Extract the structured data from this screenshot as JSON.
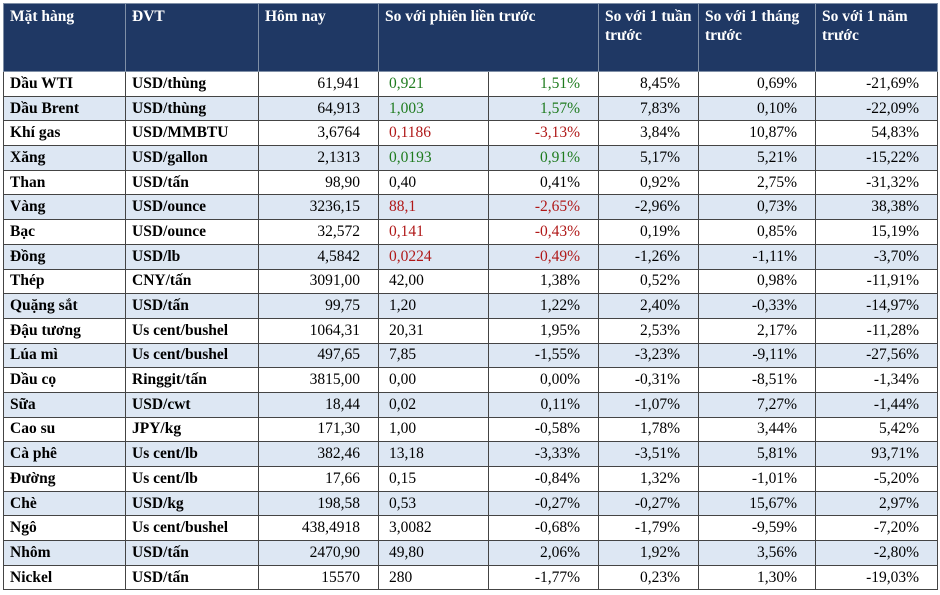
{
  "table": {
    "headers": [
      "Mặt hàng",
      "ĐVT",
      "Hôm nay",
      "So với phiên liền trước",
      "So với 1 tuần trước",
      "So với 1 tháng trước",
      "So với 1 năm trước"
    ],
    "up_color": "#1e7b1e",
    "down_color": "#b01818",
    "rows": [
      {
        "cells": [
          "Dầu WTI",
          "USD/thùng",
          "61,941",
          "0,921",
          "1,51%",
          "8,45%",
          "0,69%",
          "-21,69%"
        ],
        "change": "up"
      },
      {
        "cells": [
          "Dầu Brent",
          "USD/thùng",
          "64,913",
          "1,003",
          "1,57%",
          "7,83%",
          "0,10%",
          "-22,09%"
        ],
        "change": "up"
      },
      {
        "cells": [
          "Khí gas",
          "USD/MMBTU",
          "3,6764",
          "0,1186",
          "-3,13%",
          "3,84%",
          "10,87%",
          "54,83%"
        ],
        "change": "down"
      },
      {
        "cells": [
          "Xăng",
          "USD/gallon",
          "2,1313",
          "0,0193",
          "0,91%",
          "5,17%",
          "5,21%",
          "-15,22%"
        ],
        "change": "up"
      },
      {
        "cells": [
          "Than",
          "USD/tấn",
          "98,90",
          "0,40",
          "0,41%",
          "0,92%",
          "2,75%",
          "-31,32%"
        ]
      },
      {
        "cells": [
          "Vàng",
          "USD/ounce",
          "3236,15",
          "88,1",
          "-2,65%",
          "-2,96%",
          "0,73%",
          "38,38%"
        ],
        "change": "down"
      },
      {
        "cells": [
          "Bạc",
          "USD/ounce",
          "32,572",
          "0,141",
          "-0,43%",
          "0,19%",
          "0,85%",
          "15,19%"
        ],
        "change": "down"
      },
      {
        "cells": [
          "Đồng",
          "USD/lb",
          "4,5842",
          "0,0224",
          "-0,49%",
          "-1,26%",
          "-1,11%",
          "-3,70%"
        ],
        "change": "down"
      },
      {
        "cells": [
          "Thép",
          "CNY/tấn",
          "3091,00",
          "42,00",
          "1,38%",
          "0,52%",
          "0,98%",
          "-11,91%"
        ]
      },
      {
        "cells": [
          "Quặng sắt",
          "USD/tấn",
          "99,75",
          "1,20",
          "1,22%",
          "2,40%",
          "-0,33%",
          "-14,97%"
        ]
      },
      {
        "cells": [
          "Đậu tương",
          "Us cent/bushel",
          "1064,31",
          "20,31",
          "1,95%",
          "2,53%",
          "2,17%",
          "-11,28%"
        ]
      },
      {
        "cells": [
          "Lúa mì",
          "Us cent/bushel",
          "497,65",
          "7,85",
          "-1,55%",
          "-3,23%",
          "-9,11%",
          "-27,56%"
        ]
      },
      {
        "cells": [
          "Dầu cọ",
          "Ringgit/tấn",
          "3815,00",
          "0,00",
          "0,00%",
          "-0,31%",
          "-8,51%",
          "-1,34%"
        ]
      },
      {
        "cells": [
          "Sữa",
          "USD/cwt",
          "18,44",
          "0,02",
          "0,11%",
          "-1,07%",
          "7,27%",
          "-1,44%"
        ]
      },
      {
        "cells": [
          "Cao su",
          "JPY/kg",
          "171,30",
          "1,00",
          "-0,58%",
          "1,78%",
          "3,44%",
          "5,42%"
        ]
      },
      {
        "cells": [
          "Cà phê",
          "Us cent/lb",
          "382,46",
          "13,18",
          "-3,33%",
          "-3,51%",
          "5,81%",
          "93,71%"
        ]
      },
      {
        "cells": [
          "Đường",
          "Us cent/lb",
          "17,66",
          "0,15",
          "-0,84%",
          "1,32%",
          "-1,01%",
          "-5,20%"
        ]
      },
      {
        "cells": [
          "Chè",
          "USD/kg",
          "198,58",
          "0,53",
          "-0,27%",
          "-0,27%",
          "15,67%",
          "2,97%"
        ]
      },
      {
        "cells": [
          "Ngô",
          "Us cent/bushel",
          "438,4918",
          "3,0082",
          "-0,68%",
          "-1,79%",
          "-9,59%",
          "-7,20%"
        ]
      },
      {
        "cells": [
          "Nhôm",
          "USD/tấn",
          "2470,90",
          "49,80",
          "2,06%",
          "1,92%",
          "3,56%",
          "-2,80%"
        ]
      },
      {
        "cells": [
          "Nickel",
          "USD/tấn",
          "15570",
          "280",
          "-1,77%",
          "0,23%",
          "1,30%",
          "-19,03%"
        ]
      }
    ]
  }
}
